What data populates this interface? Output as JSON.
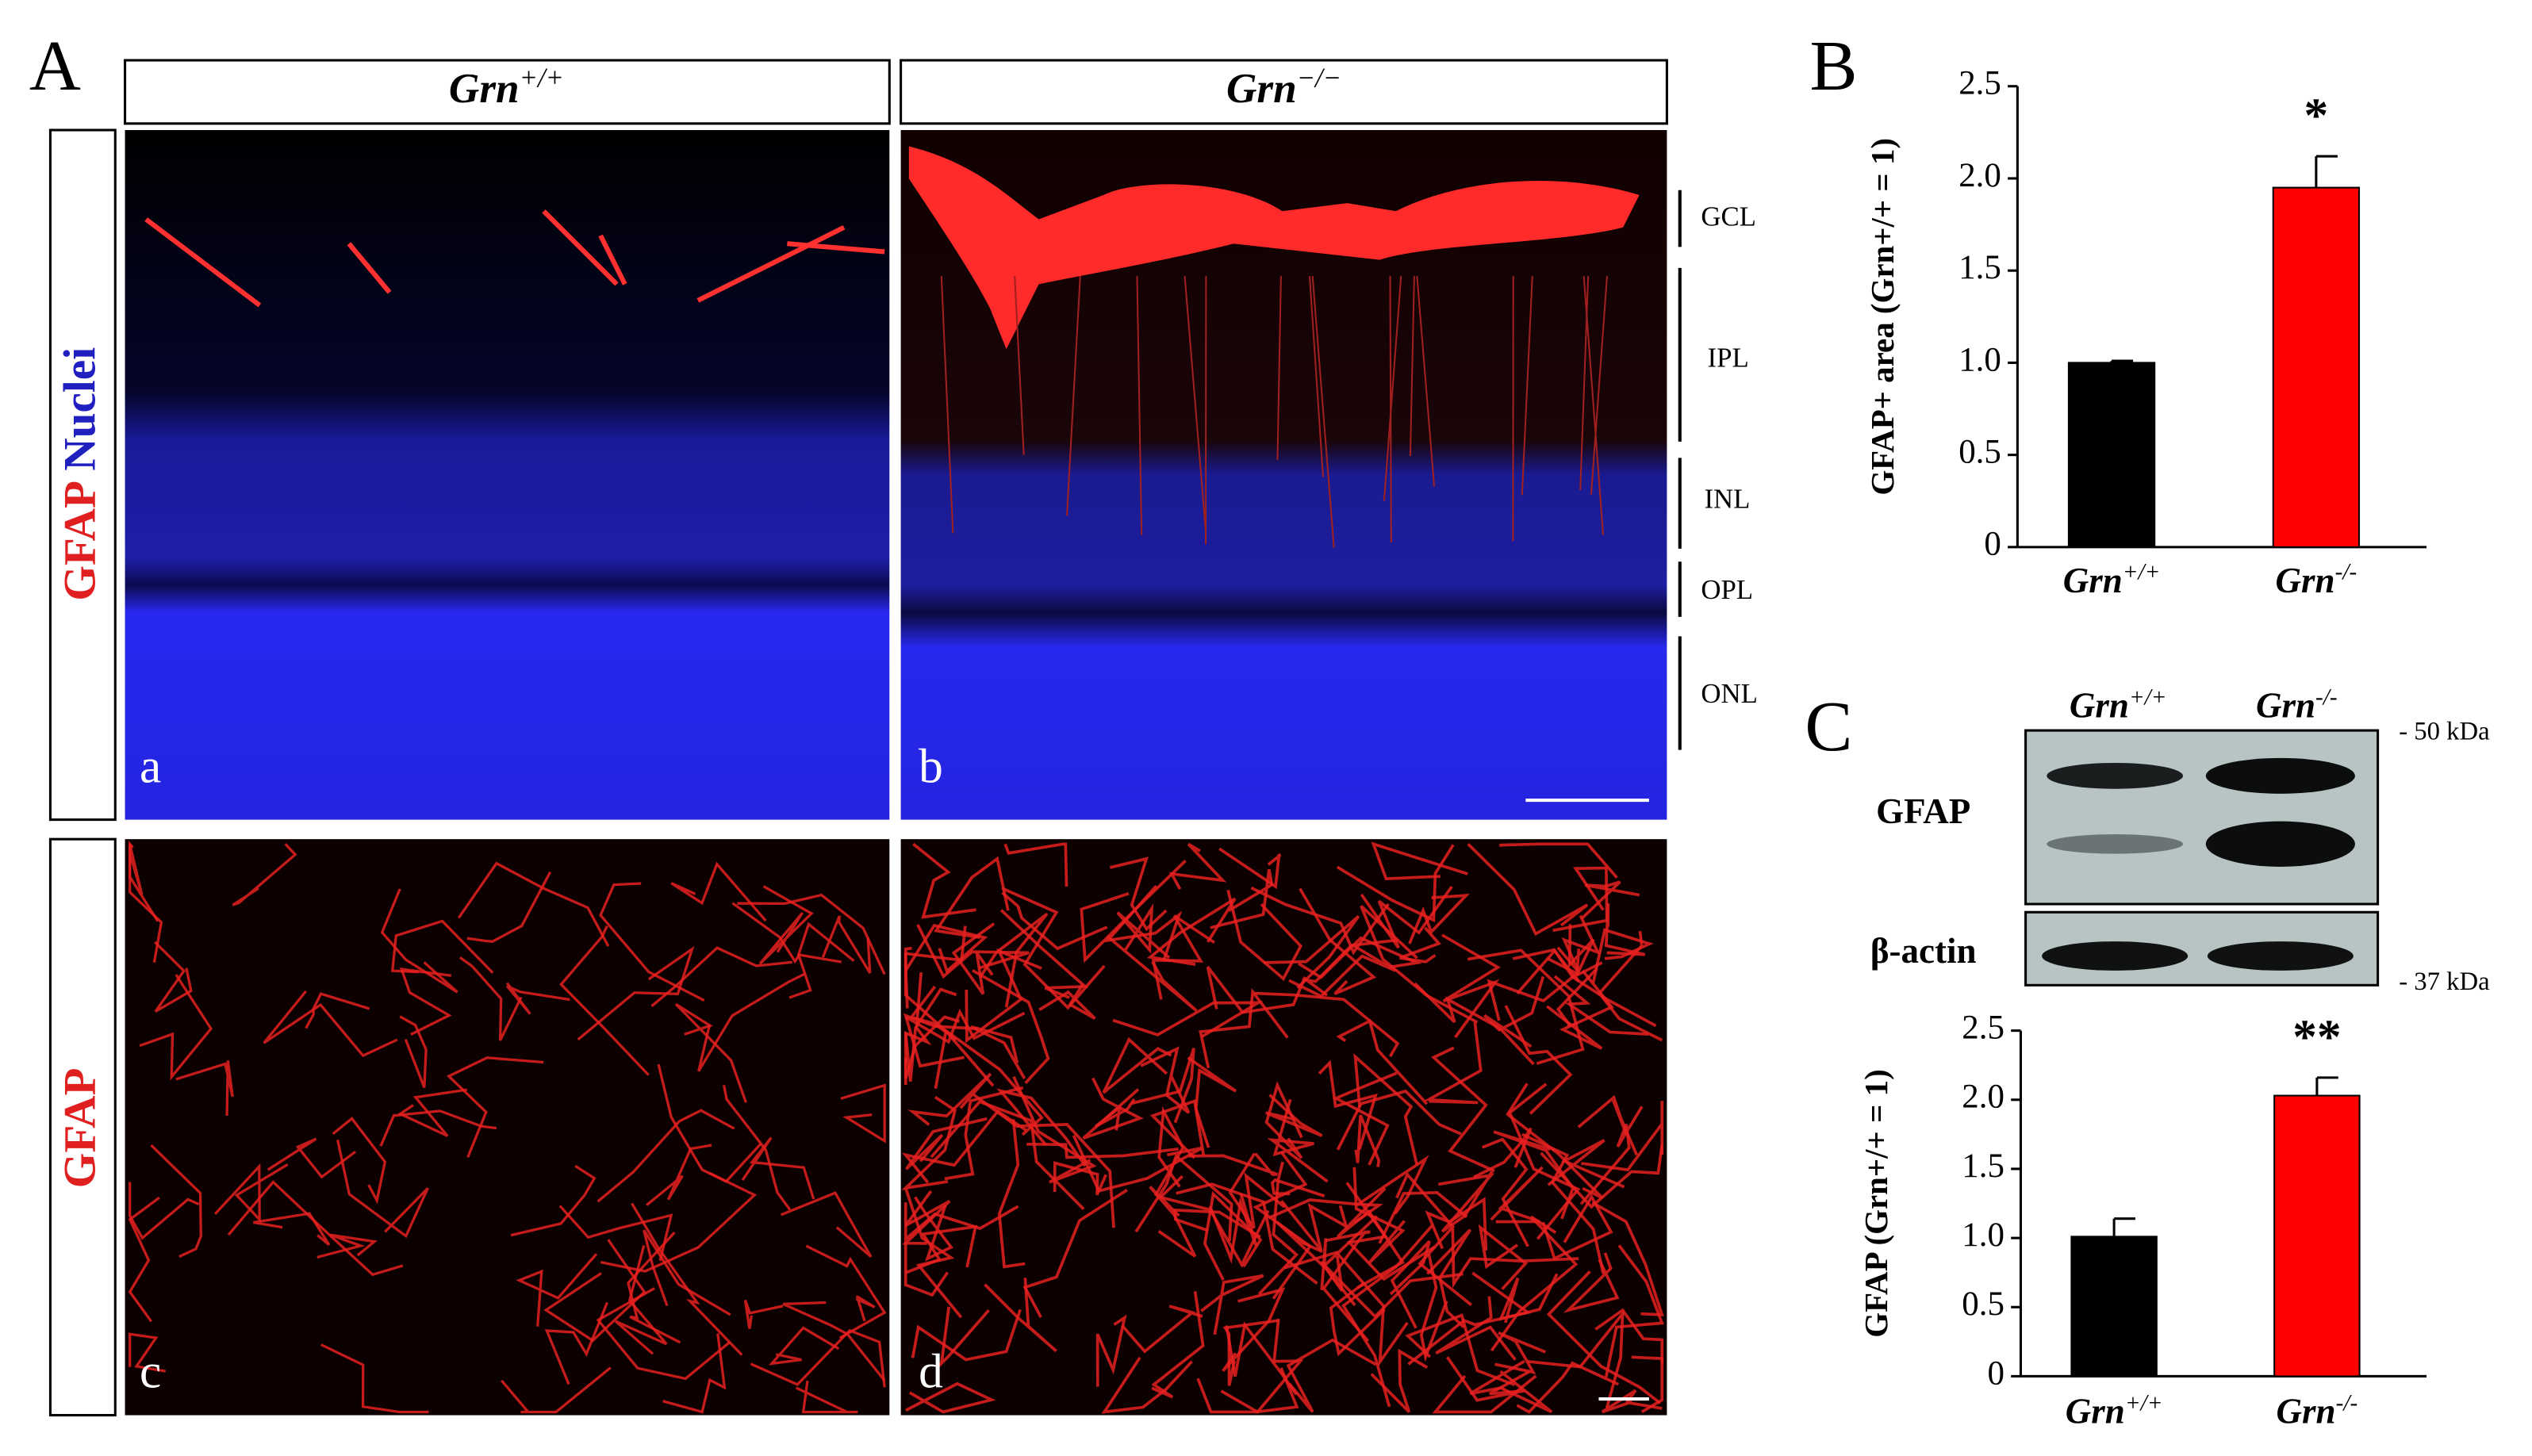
{
  "panel_labels": [
    "A",
    "B",
    "C"
  ],
  "panel_a": {
    "columns": [
      "Grn+/+",
      "Grn−/−"
    ],
    "row_labels": [
      [
        "GFAP",
        "Nuclei"
      ],
      [
        "GFAP"
      ]
    ],
    "image_labels": [
      "a",
      "b",
      "c",
      "d"
    ],
    "layers": [
      "GCL",
      "IPL",
      "INL",
      "OPL",
      "ONL"
    ]
  },
  "western_blot": {
    "lanes": [
      "Grn+/+",
      "Grn-/-"
    ],
    "rows": [
      "GFAP",
      "β-actin"
    ],
    "markers": [
      "- 50 kDa",
      "- 37 kDa"
    ]
  },
  "chart_data": [
    {
      "type": "bar",
      "ylabel": "GFAP+ area (Grn+/+ = 1)",
      "categories": [
        "Grn+/+",
        "Grn-/-"
      ],
      "values": [
        1.0,
        1.95
      ],
      "errors": [
        0.01,
        0.17
      ],
      "colors": [
        "#000000",
        "#ff0000"
      ],
      "annotations": [
        null,
        "*"
      ],
      "ylim": [
        0,
        2.5
      ],
      "yticks": [
        0,
        0.5,
        {
          "value": 1,
          "label": "1.0"
        },
        {
          "value": 1.5,
          "label": "1.5"
        },
        {
          "value": 2,
          "label": "2.0"
        },
        2.5
      ]
    },
    {
      "type": "bar",
      "ylabel": "GFAP (Grn+/+ = 1)",
      "categories": [
        "Grn+/+",
        "Grn-/-"
      ],
      "values": [
        1.01,
        2.03
      ],
      "errors": [
        0.13,
        0.13
      ],
      "colors": [
        "#000000",
        "#ff0000"
      ],
      "annotations": [
        null,
        "**"
      ],
      "ylim": [
        0,
        2.5
      ],
      "yticks": [
        0,
        0.5,
        {
          "value": 1,
          "label": "1.0"
        },
        {
          "value": 1.5,
          "label": "1.5"
        },
        {
          "value": 2,
          "label": "2.0"
        },
        2.5
      ]
    }
  ]
}
